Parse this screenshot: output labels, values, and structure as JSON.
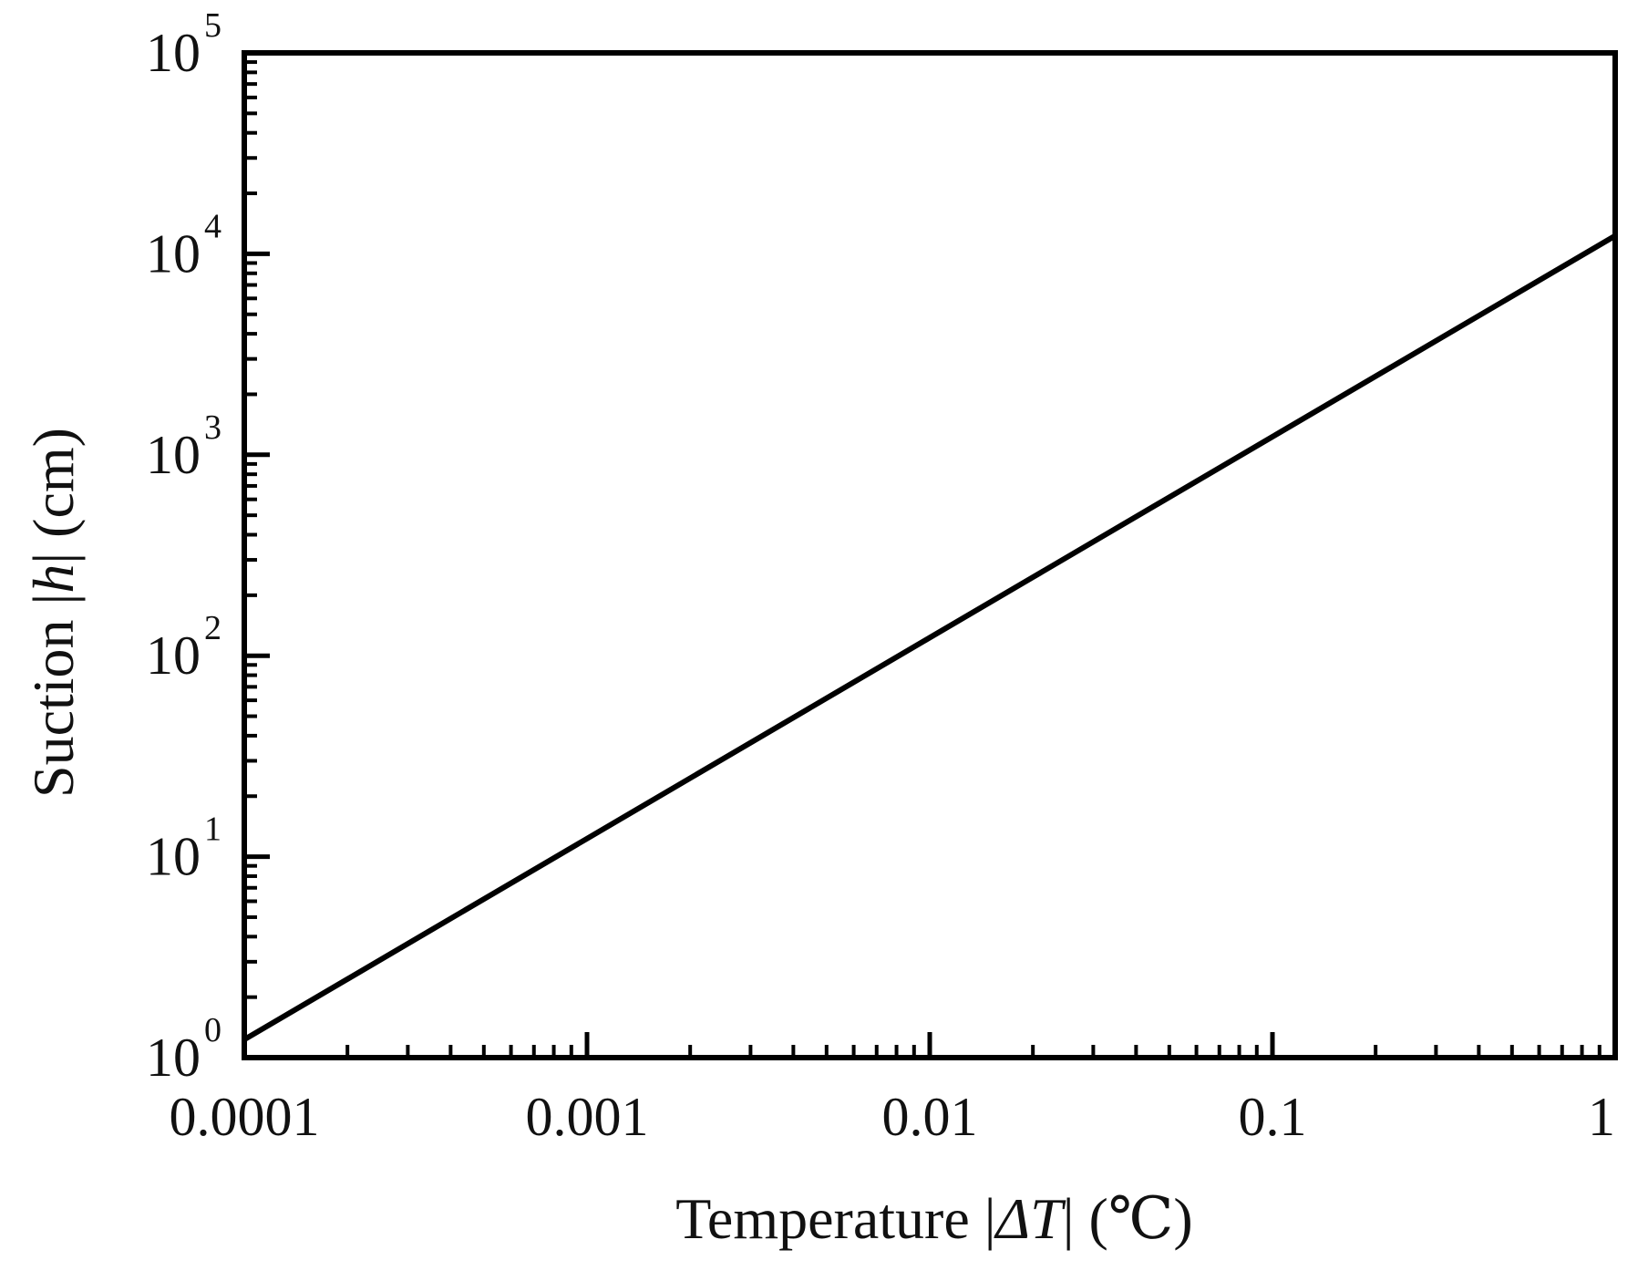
{
  "chart_data": {
    "type": "line",
    "xscale": "log",
    "yscale": "log",
    "xlim": [
      0.0001,
      1
    ],
    "ylim": [
      1,
      100000
    ],
    "grid": false,
    "legend": "none",
    "line_color": "#000000",
    "xlabel": {
      "pre": "Temperature |",
      "var": "ΔT",
      "post": "| (℃)"
    },
    "ylabel": {
      "pre": "Suction |",
      "var": "h",
      "post": "| (cm)"
    },
    "x_ticks": [
      {
        "value": 0.0001,
        "label": "0.0001"
      },
      {
        "value": 0.001,
        "label": "0.001"
      },
      {
        "value": 0.01,
        "label": "0.01"
      },
      {
        "value": 0.1,
        "label": "0.1"
      },
      {
        "value": 1,
        "label": "1"
      }
    ],
    "y_ticks": [
      {
        "value": 1,
        "base": "10",
        "exp": "0"
      },
      {
        "value": 10,
        "base": "10",
        "exp": "1"
      },
      {
        "value": 100,
        "base": "10",
        "exp": "2"
      },
      {
        "value": 1000,
        "base": "10",
        "exp": "3"
      },
      {
        "value": 10000,
        "base": "10",
        "exp": "4"
      },
      {
        "value": 100000,
        "base": "10",
        "exp": "5"
      }
    ],
    "series": [
      {
        "x": [
          0.0001,
          0.001,
          0.01,
          0.1,
          1
        ],
        "y": [
          1.23,
          12.3,
          123,
          1230,
          12300
        ]
      }
    ]
  }
}
